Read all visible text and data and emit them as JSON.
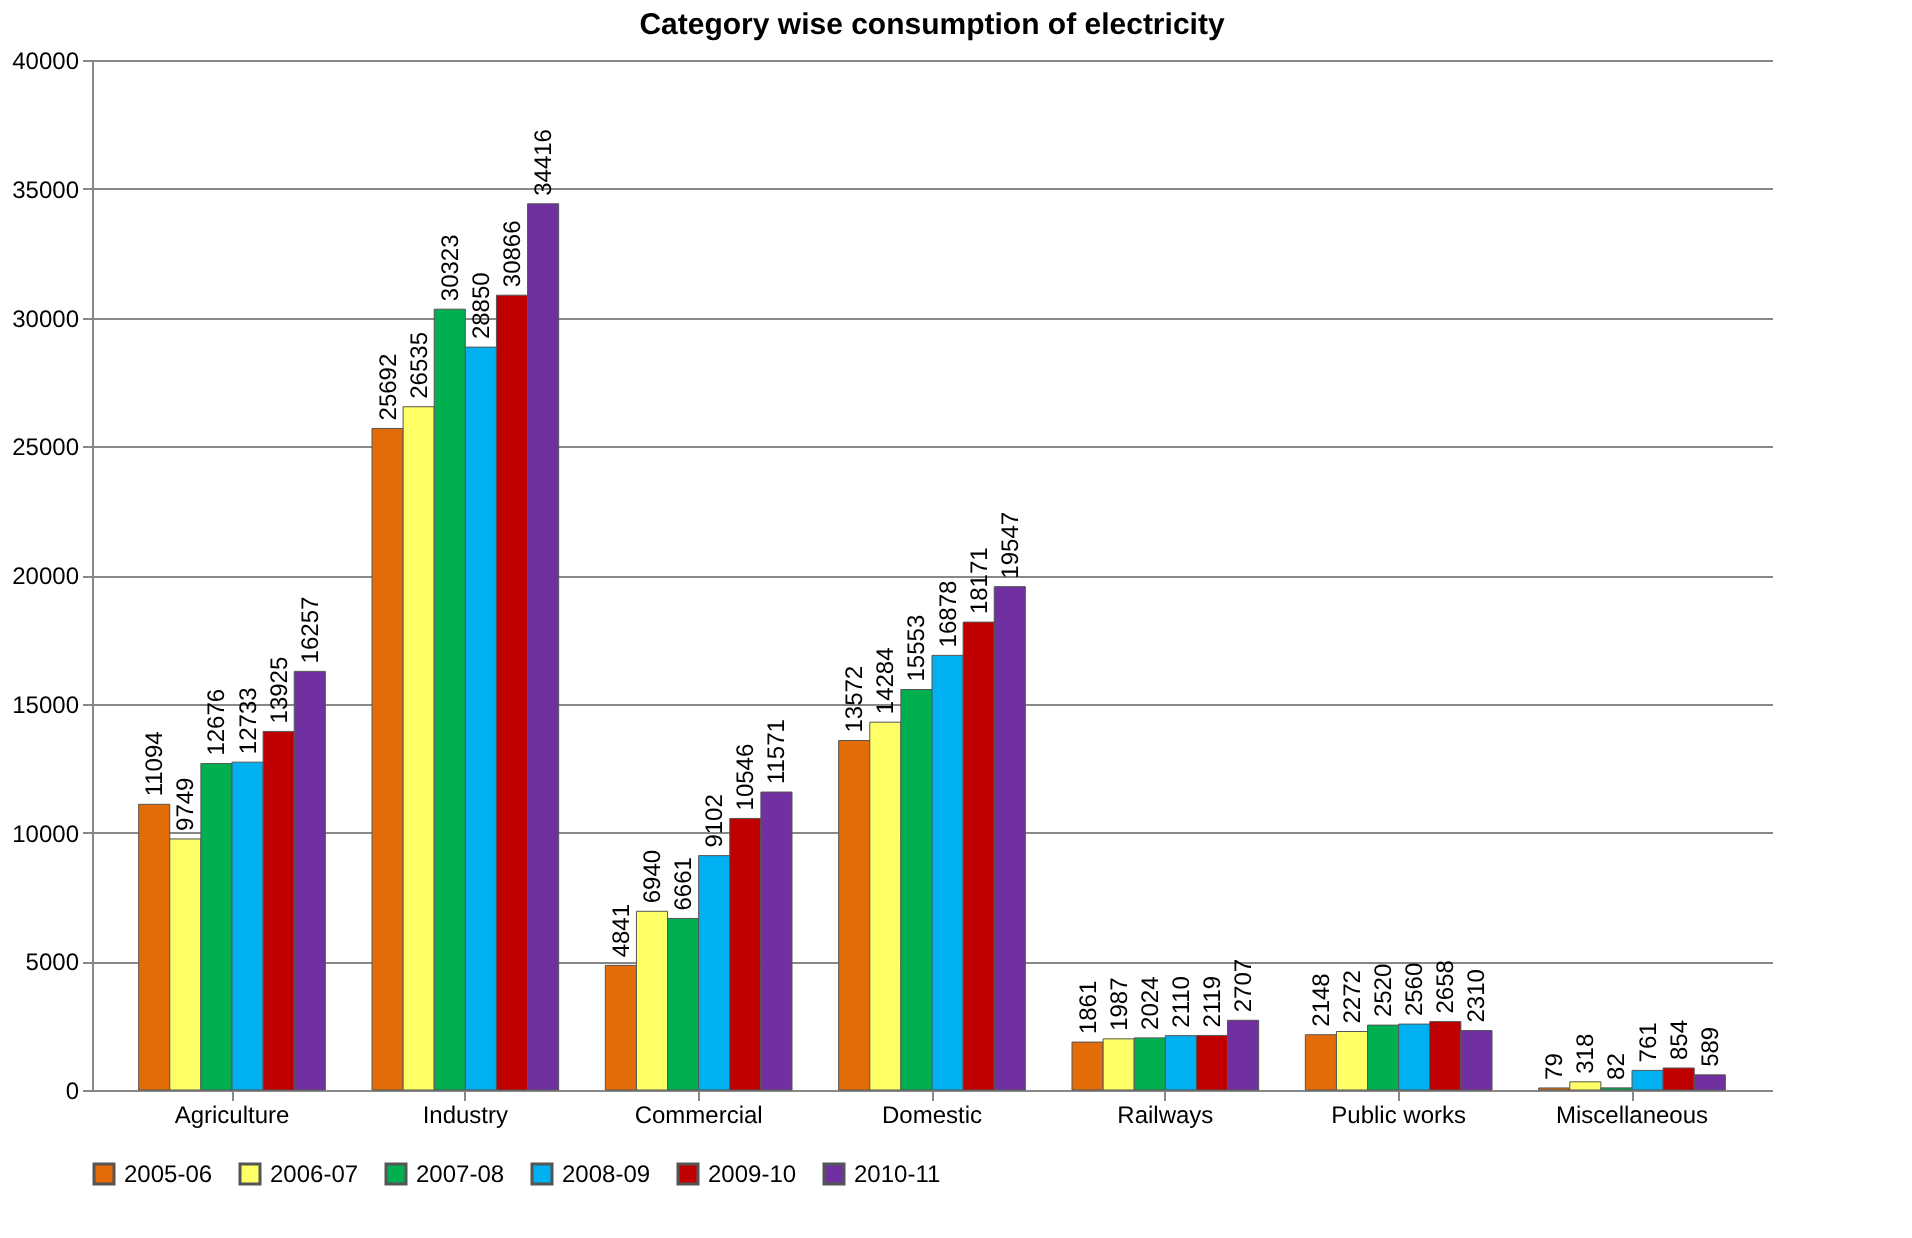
{
  "chart_data": {
    "type": "bar",
    "title": "Category wise consumption of electricity",
    "categories": [
      "Agriculture",
      "Industry",
      "Commercial",
      "Domestic",
      "Railways",
      "Public works",
      "Miscellaneous"
    ],
    "series": [
      {
        "name": "2005-06",
        "color": "#e36c09",
        "values": [
          11094,
          25692,
          4841,
          13572,
          1861,
          2148,
          79
        ]
      },
      {
        "name": "2006-07",
        "color": "#ffff66",
        "values": [
          9749,
          26535,
          6940,
          14284,
          1987,
          2272,
          318
        ]
      },
      {
        "name": "2007-08",
        "color": "#00b050",
        "values": [
          12676,
          30323,
          6661,
          15553,
          2024,
          2520,
          82
        ]
      },
      {
        "name": "2008-09",
        "color": "#00b0f0",
        "values": [
          12733,
          28850,
          9102,
          16878,
          2110,
          2560,
          761
        ]
      },
      {
        "name": "2009-10",
        "color": "#c00000",
        "values": [
          13925,
          30866,
          10546,
          18171,
          2119,
          2658,
          854
        ]
      },
      {
        "name": "2010-11",
        "color": "#7030a0",
        "values": [
          16257,
          34416,
          11571,
          19547,
          2707,
          2310,
          589
        ]
      }
    ],
    "ylim": [
      0,
      40000
    ],
    "yticks": [
      0,
      5000,
      10000,
      15000,
      20000,
      25000,
      30000,
      35000,
      40000
    ],
    "grid": "y",
    "legend": "bottom",
    "data_labels": true
  }
}
